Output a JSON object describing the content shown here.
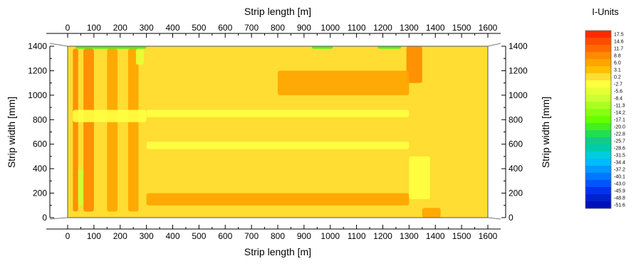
{
  "chart_data": {
    "type": "heatmap",
    "xlabel_top": "Strip length [m]",
    "xlabel_bottom": "Strip length [m]",
    "ylabel_left": "Strip width [mm]",
    "ylabel_right": "Strip width [mm]",
    "x_ticks": [
      0,
      100,
      200,
      300,
      400,
      500,
      600,
      700,
      800,
      900,
      1000,
      1100,
      1200,
      1300,
      1400,
      1500,
      1600
    ],
    "y_ticks": [
      0,
      200,
      400,
      600,
      800,
      1000,
      1200,
      1400
    ],
    "xlim": [
      0,
      1600
    ],
    "ylim": [
      0,
      1400
    ],
    "grid": false,
    "colorbar": {
      "title": "I-Units",
      "labels": [
        "17.5",
        "14.6",
        "11.7",
        "8.8",
        "6.0",
        "3.1",
        "0.2",
        "-2.7",
        "-5.6",
        "-8.4",
        "-11.3",
        "-14.2",
        "-17.1",
        "-20.0",
        "-22.8",
        "-25.7",
        "-28.6",
        "-31.5",
        "-34.4",
        "-37.2",
        "-40.1",
        "-43.0",
        "-45.9",
        "-48.8",
        "-51.6"
      ],
      "colors": [
        "#ff2a00",
        "#ff4d00",
        "#ff6a00",
        "#ff8a00",
        "#ffa500",
        "#ffc000",
        "#ffdd33",
        "#ffff40",
        "#e6ff33",
        "#ccff33",
        "#aaff22",
        "#88ff11",
        "#66ff00",
        "#44ee22",
        "#22dd55",
        "#11cc88",
        "#00ccaa",
        "#00ccdd",
        "#00bbff",
        "#0099ff",
        "#0077ff",
        "#0055ff",
        "#0033ee",
        "#0022cc",
        "#0011bb"
      ]
    },
    "background_value": 1.5,
    "regions": [
      {
        "x": [
          20,
          40
        ],
        "y": [
          50,
          1380
        ],
        "value": 7.5
      },
      {
        "x": [
          60,
          100
        ],
        "y": [
          50,
          1380
        ],
        "value": 8.0
      },
      {
        "x": [
          150,
          190
        ],
        "y": [
          50,
          1380
        ],
        "value": 7.0
      },
      {
        "x": [
          230,
          270
        ],
        "y": [
          50,
          1380
        ],
        "value": 7.0
      },
      {
        "x": [
          1290,
          1350
        ],
        "y": [
          1100,
          1400
        ],
        "value": 10.0
      },
      {
        "x": [
          1350,
          1420
        ],
        "y": [
          0,
          80
        ],
        "value": 6.5
      },
      {
        "x": [
          800,
          1300
        ],
        "y": [
          1000,
          1200
        ],
        "value": 6.5
      },
      {
        "x": [
          300,
          1300
        ],
        "y": [
          100,
          200
        ],
        "value": 5.0
      },
      {
        "x": [
          20,
          300
        ],
        "y": [
          780,
          880
        ],
        "value": -2.0
      },
      {
        "x": [
          300,
          1300
        ],
        "y": [
          820,
          880
        ],
        "value": -2.0
      },
      {
        "x": [
          300,
          1300
        ],
        "y": [
          560,
          620
        ],
        "value": -2.5
      },
      {
        "x": [
          1300,
          1380
        ],
        "y": [
          150,
          500
        ],
        "value": -3.0
      },
      {
        "x": [
          40,
          60
        ],
        "y": [
          100,
          400
        ],
        "value": -8.0
      },
      {
        "x": [
          260,
          290
        ],
        "y": [
          1250,
          1380
        ],
        "value": -6.0
      },
      {
        "x": [
          30,
          300
        ],
        "y": [
          1380,
          1400
        ],
        "value": -20.0
      },
      {
        "x": [
          930,
          1010
        ],
        "y": [
          1380,
          1400
        ],
        "value": -20.0
      },
      {
        "x": [
          1180,
          1270
        ],
        "y": [
          1380,
          1400
        ],
        "value": -20.0
      }
    ]
  }
}
